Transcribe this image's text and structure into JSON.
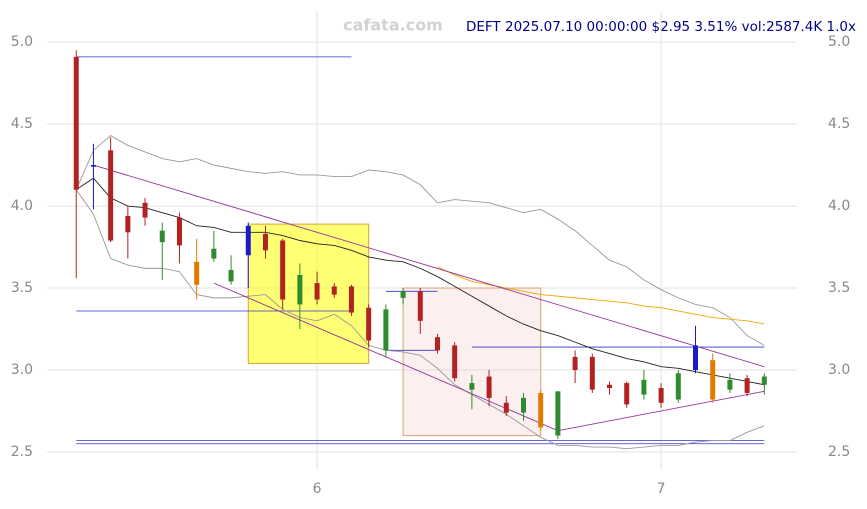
{
  "chart_data": {
    "type": "candlestick",
    "watermark": "cafata.com",
    "info": "DEFT 2025.07.10 00:00:00 $2.95 3.51% vol:2587.4K 1.0x",
    "xlim": [
      5.215,
      7.395
    ],
    "ylim": [
      2.39,
      5.19
    ],
    "xticks": [
      6,
      7
    ],
    "yticks": [
      {
        "value": 2.5,
        "label": "2.5"
      },
      {
        "value": 3,
        "label": "3.0"
      },
      3.5,
      {
        "value": 4,
        "label": "4.0"
      },
      4.5,
      {
        "value": 5,
        "label": "5.0"
      }
    ],
    "grid": true,
    "x": [
      5.3,
      5.35,
      5.4,
      5.45,
      5.5,
      5.55,
      5.6,
      5.65,
      5.7,
      5.75,
      5.8,
      5.85,
      5.9,
      5.95,
      6.0,
      6.05,
      6.1,
      6.15,
      6.2,
      6.25,
      6.3,
      6.35,
      6.4,
      6.45,
      6.5,
      6.55,
      6.6,
      6.65,
      6.7,
      6.75,
      6.8,
      6.85,
      6.9,
      6.95,
      7.0,
      7.05,
      7.1,
      7.15,
      7.2,
      7.25,
      7.3
    ],
    "open": [
      4.91,
      4.24,
      4.34,
      3.94,
      4.02,
      3.78,
      3.93,
      3.66,
      3.68,
      3.54,
      3.7,
      3.83,
      3.79,
      3.4,
      3.53,
      3.51,
      3.51,
      3.38,
      3.12,
      3.44,
      3.48,
      3.2,
      3.15,
      2.88,
      2.96,
      2.8,
      2.74,
      2.86,
      2.6,
      3.08,
      3.08,
      2.91,
      2.92,
      2.85,
      2.89,
      2.82,
      3.0,
      3.06,
      2.88,
      2.95,
      2.91
    ],
    "high": [
      4.95,
      4.38,
      4.42,
      4.0,
      4.05,
      3.9,
      3.96,
      3.8,
      3.85,
      3.7,
      3.9,
      3.88,
      3.8,
      3.65,
      3.6,
      3.53,
      3.52,
      3.4,
      3.4,
      3.5,
      3.5,
      3.22,
      3.17,
      2.97,
      3.0,
      2.84,
      2.86,
      2.88,
      2.87,
      3.12,
      3.1,
      2.93,
      2.93,
      3.0,
      2.92,
      3.0,
      3.27,
      3.1,
      2.98,
      2.97,
      2.98
    ],
    "low": [
      3.56,
      3.98,
      3.78,
      3.68,
      3.88,
      3.55,
      3.65,
      3.43,
      3.66,
      3.52,
      3.5,
      3.68,
      3.37,
      3.25,
      3.4,
      3.44,
      3.33,
      3.14,
      3.08,
      3.4,
      3.22,
      3.1,
      2.93,
      2.76,
      2.78,
      2.72,
      2.69,
      2.63,
      2.58,
      2.92,
      2.86,
      2.85,
      2.77,
      2.82,
      2.77,
      2.8,
      2.98,
      2.8,
      2.86,
      2.84,
      2.85
    ],
    "close": [
      4.1,
      4.25,
      3.79,
      3.84,
      3.93,
      3.85,
      3.76,
      3.52,
      3.74,
      3.61,
      3.88,
      3.73,
      3.43,
      3.58,
      3.43,
      3.46,
      3.35,
      3.18,
      3.37,
      3.48,
      3.3,
      3.12,
      2.95,
      2.92,
      2.83,
      2.74,
      2.83,
      2.65,
      2.87,
      3.0,
      2.88,
      2.89,
      2.79,
      2.94,
      2.8,
      2.98,
      3.15,
      2.82,
      2.94,
      2.86,
      2.96
    ],
    "colors": [
      "#b22222",
      "#1a1acd",
      "#b22222",
      "#b22222",
      "#b22222",
      "#2e8b2e",
      "#b22222",
      "#e07b00",
      "#2e8b2e",
      "#2e8b2e",
      "#1a1acd",
      "#b22222",
      "#b22222",
      "#2e8b2e",
      "#b22222",
      "#b22222",
      "#b22222",
      "#b22222",
      "#2e8b2e",
      "#2e8b2e",
      "#b22222",
      "#b22222",
      "#b22222",
      "#2e8b2e",
      "#b22222",
      "#b22222",
      "#2e8b2e",
      "#e07b00",
      "#2e8b2e",
      "#b22222",
      "#b22222",
      "#b22222",
      "#b22222",
      "#2e8b2e",
      "#b22222",
      "#2e8b2e",
      "#1a1acd",
      "#e07b00",
      "#2e8b2e",
      "#b22222",
      "#2e8b2e"
    ],
    "lines": [
      {
        "color": "#999999",
        "values": [
          4.1,
          4.34,
          4.43,
          4.37,
          4.33,
          4.29,
          4.27,
          4.29,
          4.25,
          4.23,
          4.21,
          4.2,
          4.21,
          4.19,
          4.19,
          4.18,
          4.18,
          4.22,
          4.21,
          4.19,
          4.13,
          4.02,
          4.04,
          4.03,
          4.02,
          3.99,
          3.96,
          3.98,
          3.92,
          3.85,
          3.76,
          3.67,
          3.63,
          3.55,
          3.49,
          3.44,
          3.4,
          3.38,
          3.32,
          3.21,
          3.15
        ]
      },
      {
        "color": "#999999",
        "values": [
          4.1,
          3.95,
          3.68,
          3.64,
          3.62,
          3.62,
          3.6,
          3.46,
          3.44,
          3.44,
          3.45,
          3.46,
          3.37,
          3.32,
          3.3,
          3.34,
          3.27,
          3.15,
          3.12,
          3.11,
          3.09,
          3.01,
          2.91,
          2.85,
          2.79,
          2.73,
          2.66,
          2.59,
          2.54,
          2.54,
          2.53,
          2.53,
          2.52,
          2.53,
          2.54,
          2.54,
          2.56,
          2.57,
          2.57,
          2.62,
          2.66
        ]
      },
      {
        "color": "#222222",
        "values": [
          4.1,
          4.17,
          4.05,
          4.0,
          3.99,
          3.96,
          3.93,
          3.88,
          3.87,
          3.84,
          3.84,
          3.84,
          3.82,
          3.79,
          3.77,
          3.76,
          3.73,
          3.69,
          3.67,
          3.66,
          3.62,
          3.57,
          3.51,
          3.45,
          3.39,
          3.33,
          3.28,
          3.24,
          3.21,
          3.17,
          3.13,
          3.1,
          3.07,
          3.05,
          3.02,
          3.01,
          2.99,
          2.97,
          2.95,
          2.93,
          2.91
        ]
      },
      {
        "color": "#f0a500",
        "values": [
          null,
          null,
          null,
          null,
          null,
          null,
          null,
          null,
          null,
          null,
          null,
          null,
          null,
          null,
          null,
          null,
          null,
          null,
          null,
          null,
          null,
          3.63,
          3.58,
          3.54,
          3.52,
          3.5,
          3.48,
          3.46,
          3.45,
          3.44,
          3.43,
          3.42,
          3.41,
          3.39,
          3.38,
          3.36,
          3.34,
          3.32,
          3.31,
          3.3,
          3.28
        ]
      }
    ],
    "rectangles": [
      {
        "x": [
          5.8,
          6.15
        ],
        "y": [
          3.04,
          3.89
        ],
        "fill": "rgba(255,255,0,0.55)",
        "stroke": "#d8a040"
      },
      {
        "x": [
          6.25,
          6.65
        ],
        "y": [
          2.6,
          3.5
        ],
        "fill": "rgba(240,190,190,0.25)",
        "stroke": "#e0a070"
      }
    ],
    "trendlines": [
      {
        "x": [
          5.35,
          7.3
        ],
        "y": [
          4.25,
          3.02
        ],
        "color": "#993399"
      },
      {
        "x": [
          5.7,
          6.7
        ],
        "y": [
          3.53,
          2.63
        ],
        "color": "#993399"
      },
      {
        "x": [
          6.7,
          7.3
        ],
        "y": [
          2.63,
          2.87
        ],
        "color": "#993399"
      }
    ],
    "hlines": [
      {
        "y": 4.91,
        "x": [
          5.3,
          6.1
        ],
        "color": "#3333cc"
      },
      {
        "y": 3.36,
        "x": [
          5.3,
          6.1
        ],
        "color": "#3333cc"
      },
      {
        "y": 3.12,
        "x": [
          6.2,
          6.35
        ],
        "color": "#3333cc"
      },
      {
        "y": 3.48,
        "x": [
          6.2,
          6.35
        ],
        "color": "#3333cc"
      },
      {
        "y": 3.14,
        "x": [
          6.45,
          7.3
        ],
        "color": "#3333cc"
      },
      {
        "y": 2.57,
        "x": [
          5.3,
          7.3
        ],
        "color": "#3333cc"
      },
      {
        "y": 2.55,
        "x": [
          5.3,
          7.3
        ],
        "color": "#3333cc"
      }
    ]
  }
}
